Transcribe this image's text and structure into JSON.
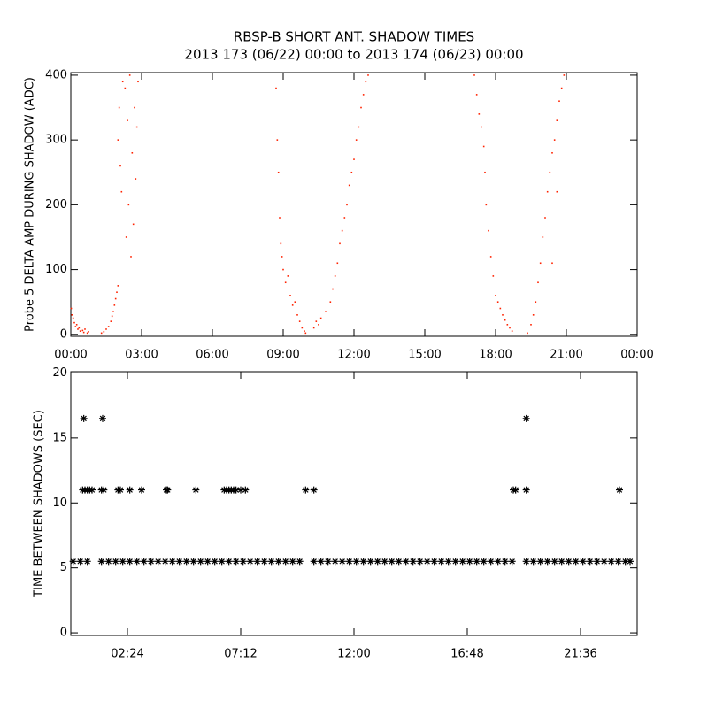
{
  "chart_data": [
    {
      "type": "scatter",
      "marker": "dot",
      "title": "RBSP-B SHORT ANT. SHADOW TIMES",
      "subtitle": "2013 173 (06/22) 00:00 to 2013 174 (06/23) 00:00",
      "y_label": "Probe 5 DELTA AMP DURING SHADOW (ADC)",
      "color": "#ff2200",
      "xlim": [
        0,
        24
      ],
      "ylim": [
        -3,
        404
      ],
      "xticks": [
        {
          "value": 0,
          "label": "00:00"
        },
        {
          "value": 3,
          "label": "03:00"
        },
        {
          "value": 6,
          "label": "06:00"
        },
        {
          "value": 9,
          "label": "09:00"
        },
        {
          "value": 12,
          "label": "12:00"
        },
        {
          "value": 15,
          "label": "15:00"
        },
        {
          "value": 18,
          "label": "18:00"
        },
        {
          "value": 21,
          "label": "21:00"
        },
        {
          "value": 24,
          "label": "00:00"
        }
      ],
      "yticks": [
        0,
        100,
        200,
        300,
        400
      ],
      "x": [
        0.02,
        0.05,
        0.1,
        0.15,
        0.2,
        0.25,
        0.3,
        0.35,
        0.4,
        0.5,
        0.55,
        0.6,
        0.7,
        0.75,
        1.3,
        1.4,
        1.5,
        1.6,
        1.7,
        1.75,
        1.8,
        1.85,
        1.9,
        1.95,
        2.0,
        2.0,
        2.05,
        2.1,
        2.15,
        2.2,
        2.3,
        2.35,
        2.4,
        2.45,
        2.5,
        2.55,
        2.6,
        2.65,
        2.7,
        2.75,
        2.8,
        2.85,
        8.7,
        8.75,
        8.8,
        8.85,
        8.9,
        8.95,
        9.0,
        9.1,
        9.2,
        9.3,
        9.4,
        9.5,
        9.6,
        9.7,
        9.8,
        9.9,
        9.95,
        10.3,
        10.4,
        10.5,
        10.6,
        10.8,
        11.0,
        11.1,
        11.2,
        11.3,
        11.4,
        11.5,
        11.6,
        11.7,
        11.8,
        11.9,
        12.0,
        12.1,
        12.2,
        12.3,
        12.4,
        12.5,
        12.6,
        17.1,
        17.2,
        17.3,
        17.4,
        17.5,
        17.55,
        17.6,
        17.7,
        17.8,
        17.9,
        18.0,
        18.1,
        18.2,
        18.3,
        18.4,
        18.5,
        18.6,
        18.7,
        19.35,
        19.5,
        19.6,
        19.7,
        19.8,
        19.9,
        20.0,
        20.1,
        20.2,
        20.3,
        20.4,
        20.5,
        20.6,
        20.7,
        20.8,
        20.9,
        20.4,
        20.6
      ],
      "values": [
        40,
        30,
        25,
        18,
        12,
        15,
        8,
        10,
        5,
        6,
        3,
        8,
        2,
        4,
        2,
        4,
        8,
        12,
        20,
        28,
        35,
        45,
        55,
        65,
        75,
        300,
        350,
        260,
        220,
        390,
        380,
        150,
        330,
        200,
        400,
        120,
        280,
        170,
        350,
        240,
        320,
        390,
        380,
        300,
        250,
        180,
        140,
        120,
        100,
        80,
        90,
        60,
        45,
        50,
        30,
        20,
        10,
        5,
        2,
        10,
        20,
        15,
        25,
        35,
        50,
        70,
        90,
        110,
        140,
        160,
        180,
        200,
        230,
        250,
        270,
        300,
        320,
        350,
        370,
        390,
        400,
        400,
        370,
        340,
        320,
        290,
        250,
        200,
        160,
        120,
        90,
        60,
        50,
        40,
        30,
        22,
        15,
        10,
        5,
        2,
        15,
        30,
        50,
        80,
        110,
        150,
        180,
        220,
        250,
        280,
        300,
        330,
        360,
        380,
        400,
        110,
        220
      ]
    },
    {
      "type": "scatter",
      "marker": "asterisk",
      "y_label": "TIME BETWEEN SHADOWS (SEC)",
      "color": "#000000",
      "xlim": [
        0,
        24
      ],
      "ylim": [
        -0.2,
        20.1
      ],
      "xticks": [
        {
          "value": 2.4,
          "label": "02:24"
        },
        {
          "value": 7.2,
          "label": "07:12"
        },
        {
          "value": 12,
          "label": "12:00"
        },
        {
          "value": 16.8,
          "label": "16:48"
        },
        {
          "value": 21.6,
          "label": "21:36"
        }
      ],
      "yticks": [
        0,
        5,
        10,
        15,
        20
      ],
      "x": [
        0.1,
        0.4,
        0.7,
        1.3,
        1.6,
        1.9,
        2.2,
        2.5,
        2.8,
        3.1,
        3.4,
        3.7,
        4.0,
        4.3,
        4.6,
        4.9,
        5.2,
        5.5,
        5.8,
        6.1,
        6.4,
        6.7,
        7.0,
        7.3,
        7.6,
        7.9,
        8.2,
        8.5,
        8.8,
        9.1,
        9.4,
        9.7,
        10.3,
        10.6,
        10.9,
        11.2,
        11.5,
        11.8,
        12.1,
        12.4,
        12.7,
        13.0,
        13.3,
        13.6,
        13.9,
        14.2,
        14.5,
        14.8,
        15.1,
        15.4,
        15.7,
        16.0,
        16.3,
        16.6,
        16.9,
        17.2,
        17.5,
        17.8,
        18.1,
        18.4,
        18.7,
        19.3,
        19.6,
        19.9,
        20.2,
        20.5,
        20.8,
        21.1,
        21.4,
        21.7,
        22.0,
        22.3,
        22.6,
        22.9,
        23.2,
        23.5,
        23.7,
        0.5,
        0.6,
        0.7,
        0.8,
        0.9,
        1.3,
        1.4,
        2.0,
        2.1,
        2.5,
        3.0,
        4.05,
        4.1,
        5.3,
        6.5,
        6.6,
        6.7,
        6.8,
        6.9,
        7.0,
        7.2,
        7.4,
        9.95,
        10.3,
        18.75,
        18.85,
        19.3,
        23.25,
        0.55,
        1.35,
        19.3
      ],
      "values": [
        5.5,
        5.5,
        5.5,
        5.5,
        5.5,
        5.5,
        5.5,
        5.5,
        5.5,
        5.5,
        5.5,
        5.5,
        5.5,
        5.5,
        5.5,
        5.5,
        5.5,
        5.5,
        5.5,
        5.5,
        5.5,
        5.5,
        5.5,
        5.5,
        5.5,
        5.5,
        5.5,
        5.5,
        5.5,
        5.5,
        5.5,
        5.5,
        5.5,
        5.5,
        5.5,
        5.5,
        5.5,
        5.5,
        5.5,
        5.5,
        5.5,
        5.5,
        5.5,
        5.5,
        5.5,
        5.5,
        5.5,
        5.5,
        5.5,
        5.5,
        5.5,
        5.5,
        5.5,
        5.5,
        5.5,
        5.5,
        5.5,
        5.5,
        5.5,
        5.5,
        5.5,
        5.5,
        5.5,
        5.5,
        5.5,
        5.5,
        5.5,
        5.5,
        5.5,
        5.5,
        5.5,
        5.5,
        5.5,
        5.5,
        5.5,
        5.5,
        5.5,
        11,
        11,
        11,
        11,
        11,
        11,
        11,
        11,
        11,
        11,
        11,
        11,
        11,
        11,
        11,
        11,
        11,
        11,
        11,
        11,
        11,
        11,
        11,
        11,
        11,
        11,
        11,
        11,
        16.5,
        16.5,
        16.5
      ]
    }
  ]
}
